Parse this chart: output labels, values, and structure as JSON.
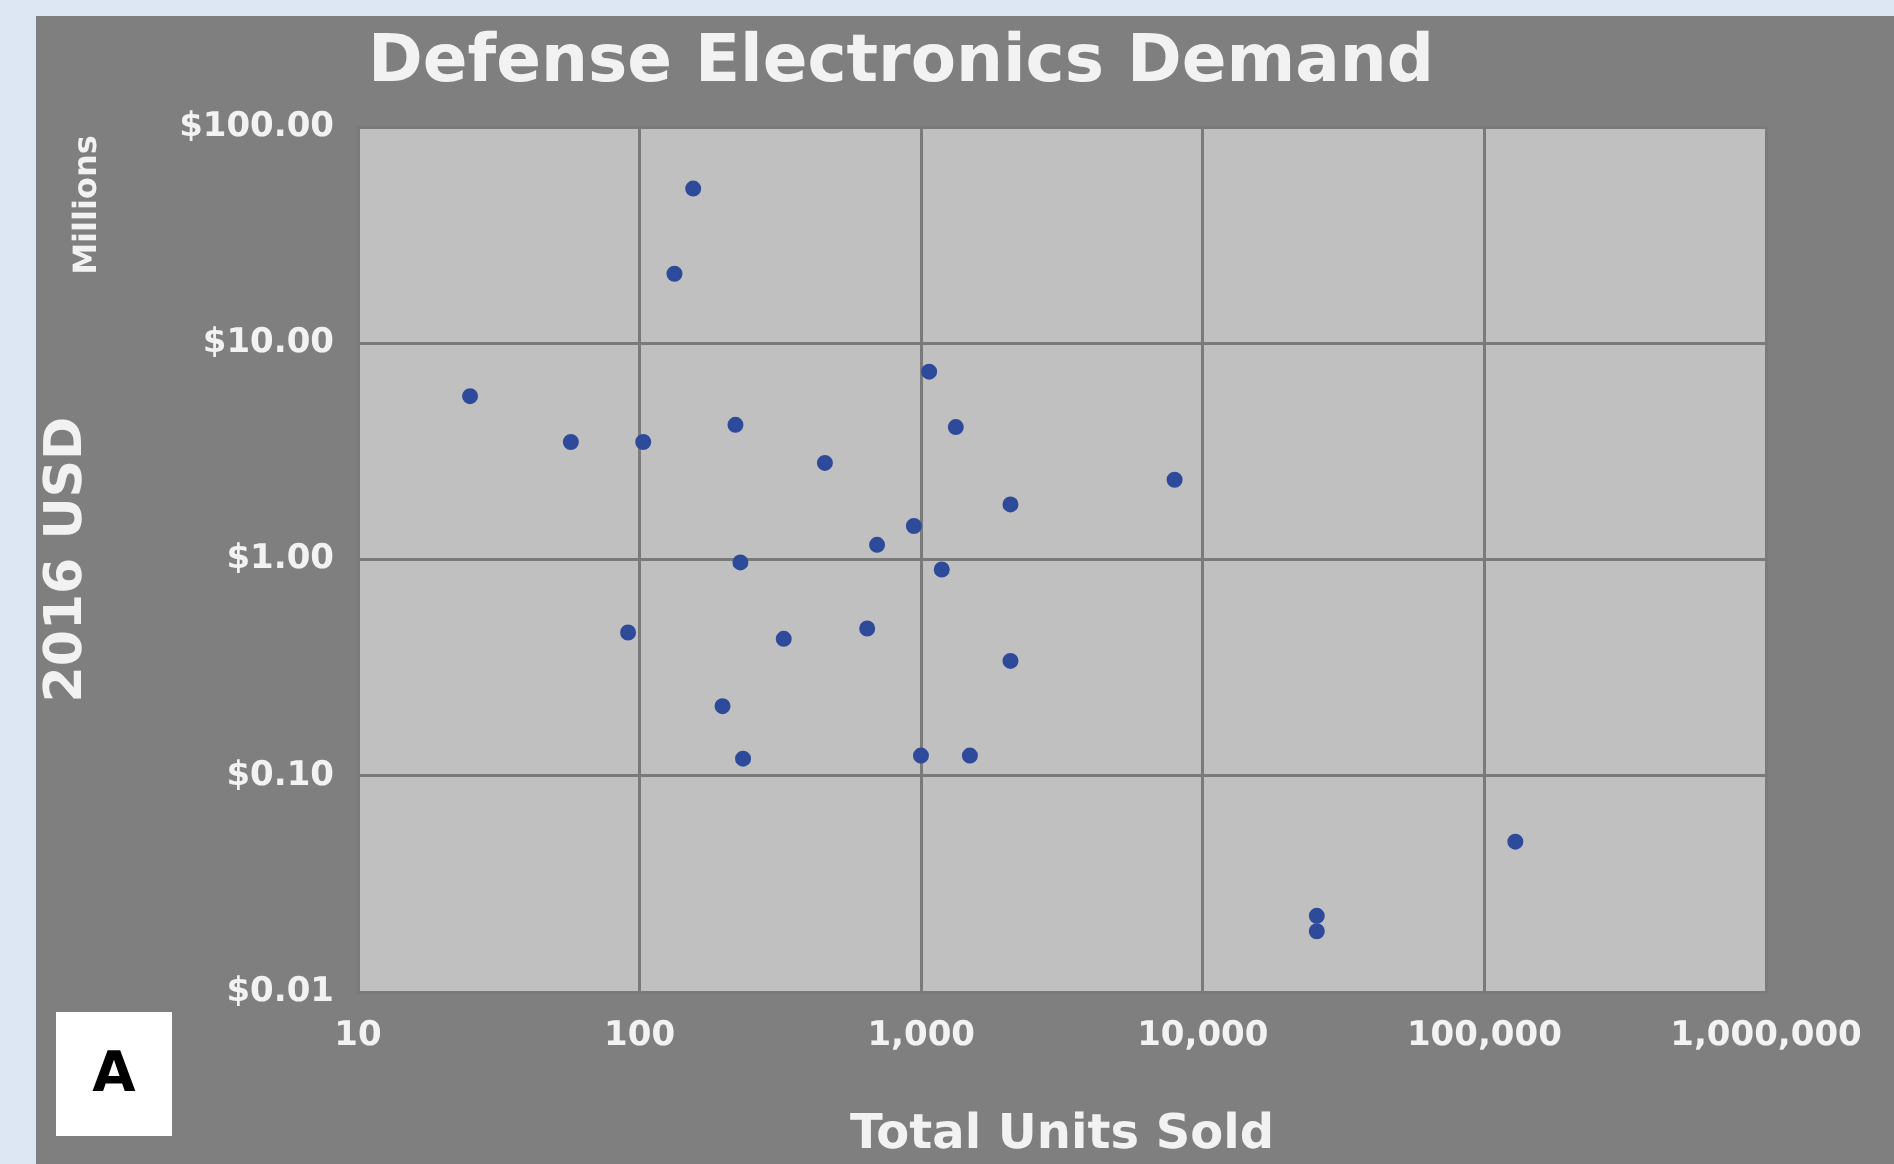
{
  "chart_data": {
    "type": "scatter",
    "title": "Defense Electronics Demand",
    "xlabel": "Total Units Sold",
    "ylabel": "2016 USD",
    "annotations": [
      "Millions",
      "A"
    ],
    "log": "xy",
    "grid": true,
    "legend": false,
    "marker": "circle",
    "xlim": [
      10,
      1000000
    ],
    "xticks": [
      {
        "value": 10,
        "label": "10"
      },
      {
        "value": 100,
        "label": "100"
      },
      {
        "value": 1000,
        "label": "1,000"
      },
      {
        "value": 10000,
        "label": "10,000"
      },
      {
        "value": 100000,
        "label": "100,000"
      },
      {
        "value": 1000000,
        "label": "1,000,000"
      }
    ],
    "ylim": [
      0.01,
      100
    ],
    "yticks": [
      {
        "value": 0.01,
        "label": "$0.01"
      },
      {
        "value": 0.1,
        "label": "$0.10"
      },
      {
        "value": 1,
        "label": "$1.00"
      },
      {
        "value": 10,
        "label": "$10.00"
      },
      {
        "value": 100,
        "label": "$100.00"
      }
    ],
    "series": [
      {
        "color": "#2e4a9a",
        "x": [
          155,
          133,
          25,
          57,
          103,
          219,
          455,
          1067,
          1327,
          2075,
          942,
          697,
          228,
          1183,
          91,
          325,
          643,
          2075,
          197,
          233,
          998,
          1489,
          7940,
          25400,
          25400,
          128800
        ],
        "values": [
          52,
          21,
          5.7,
          3.5,
          3.5,
          4.2,
          2.8,
          7.4,
          4.1,
          1.8,
          1.43,
          1.17,
          0.97,
          0.9,
          0.46,
          0.43,
          0.48,
          0.34,
          0.21,
          0.12,
          0.124,
          0.124,
          2.34,
          0.0225,
          0.0191,
          0.0496
        ]
      }
    ]
  }
}
